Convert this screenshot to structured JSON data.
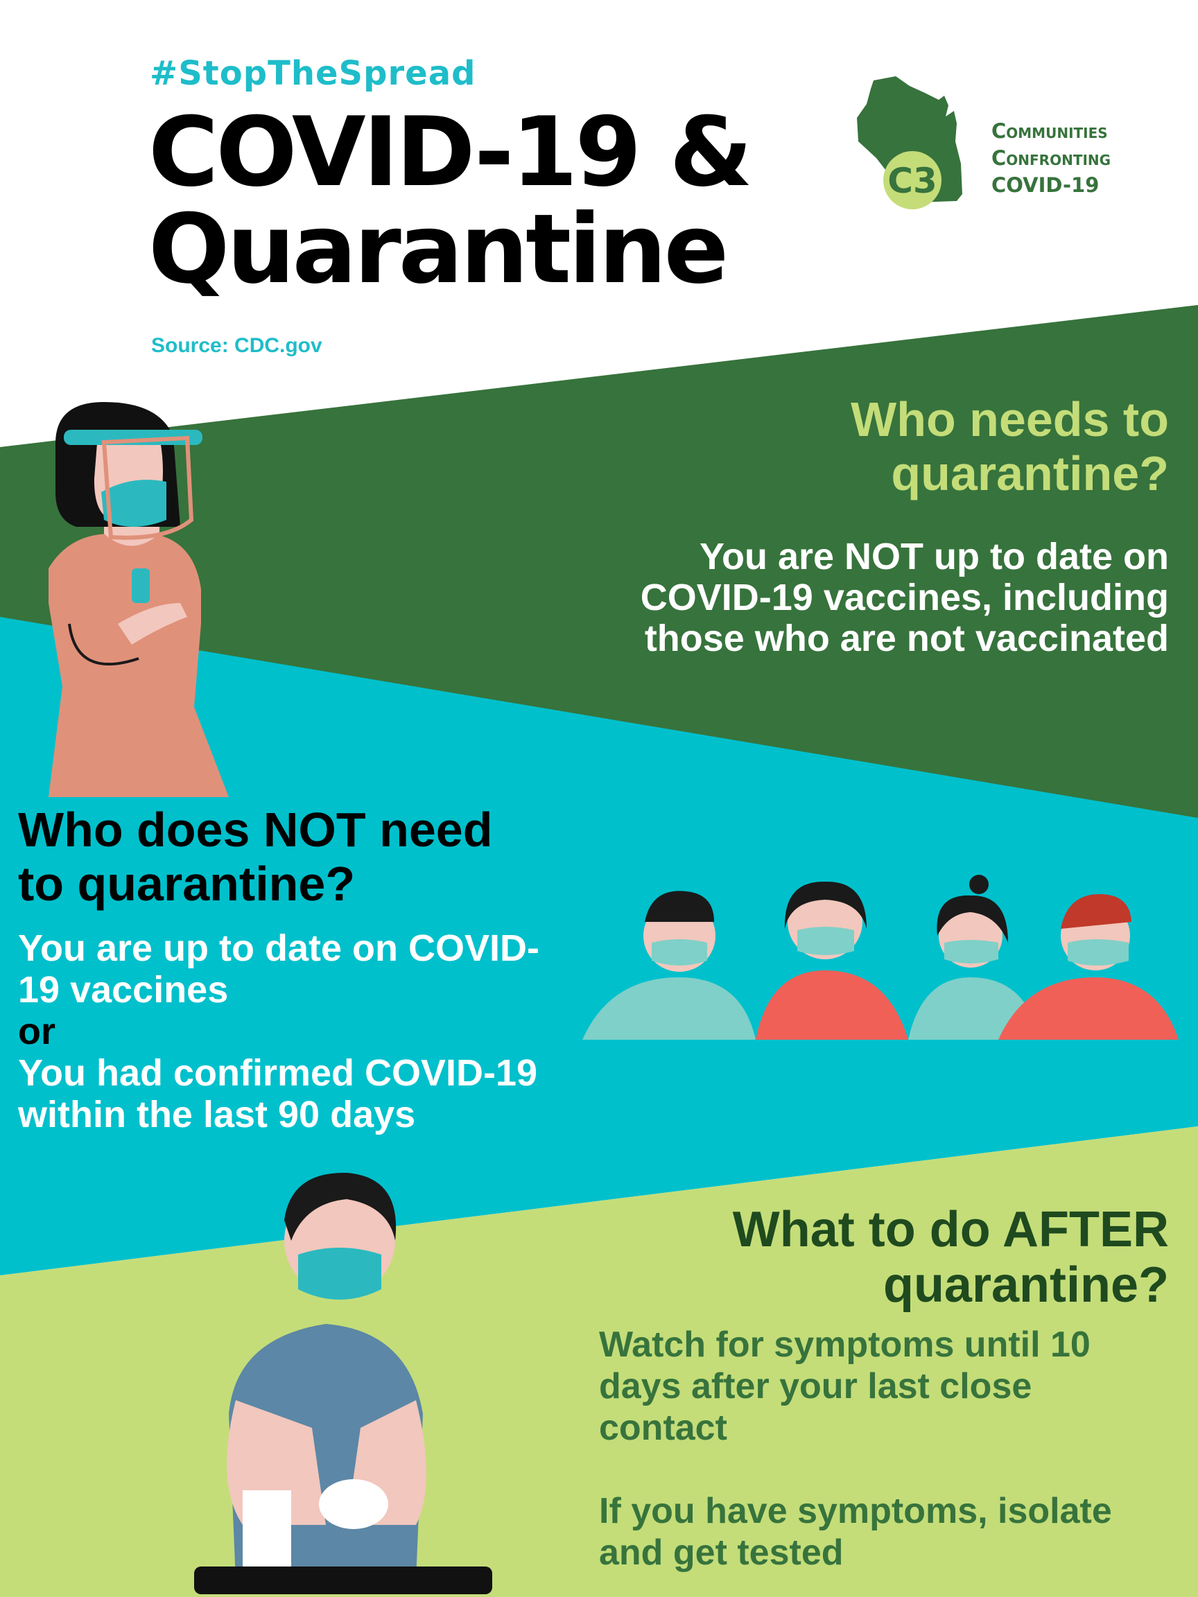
{
  "colors": {
    "dark_green": "#37733c",
    "teal": "#00c0cc",
    "light_green": "#c4dd79",
    "accent_teal_text": "#1ebdc9"
  },
  "header": {
    "hashtag": "#StopTheSpread",
    "title_line1": "COVID-19 &",
    "title_line2": "Quarantine",
    "source": "Source: CDC.gov"
  },
  "logo": {
    "mark": "C3",
    "line1": "Communities",
    "line2": "Confronting",
    "line3": "COVID-19"
  },
  "section_needs": {
    "heading_line1": "Who needs to",
    "heading_line2": "quarantine?",
    "body_line1": "You are NOT up to date on",
    "body_line2": "COVID-19 vaccines, including",
    "body_line3": "those who are not vaccinated"
  },
  "section_not_needed": {
    "heading_line1": "Who does NOT need",
    "heading_line2": "to quarantine?",
    "body_line1": "You are up to date on COVID-",
    "body_line2": "19 vaccines",
    "or": "or",
    "body_line3": "You had confirmed COVID-19",
    "body_line4": "within the last 90 days"
  },
  "section_after": {
    "heading_line1": "What to do AFTER",
    "heading_line2": "quarantine?",
    "body_line1": "Watch for symptoms until 10",
    "body_line2": "days after your last close",
    "body_line3": "contact",
    "body_line4": "If you have symptoms, isolate",
    "body_line5": "and get tested"
  },
  "illustrations": [
    "woman-face-shield-sanitizer-illustration",
    "masked-group-illustration",
    "woman-washing-hands-illustration"
  ]
}
